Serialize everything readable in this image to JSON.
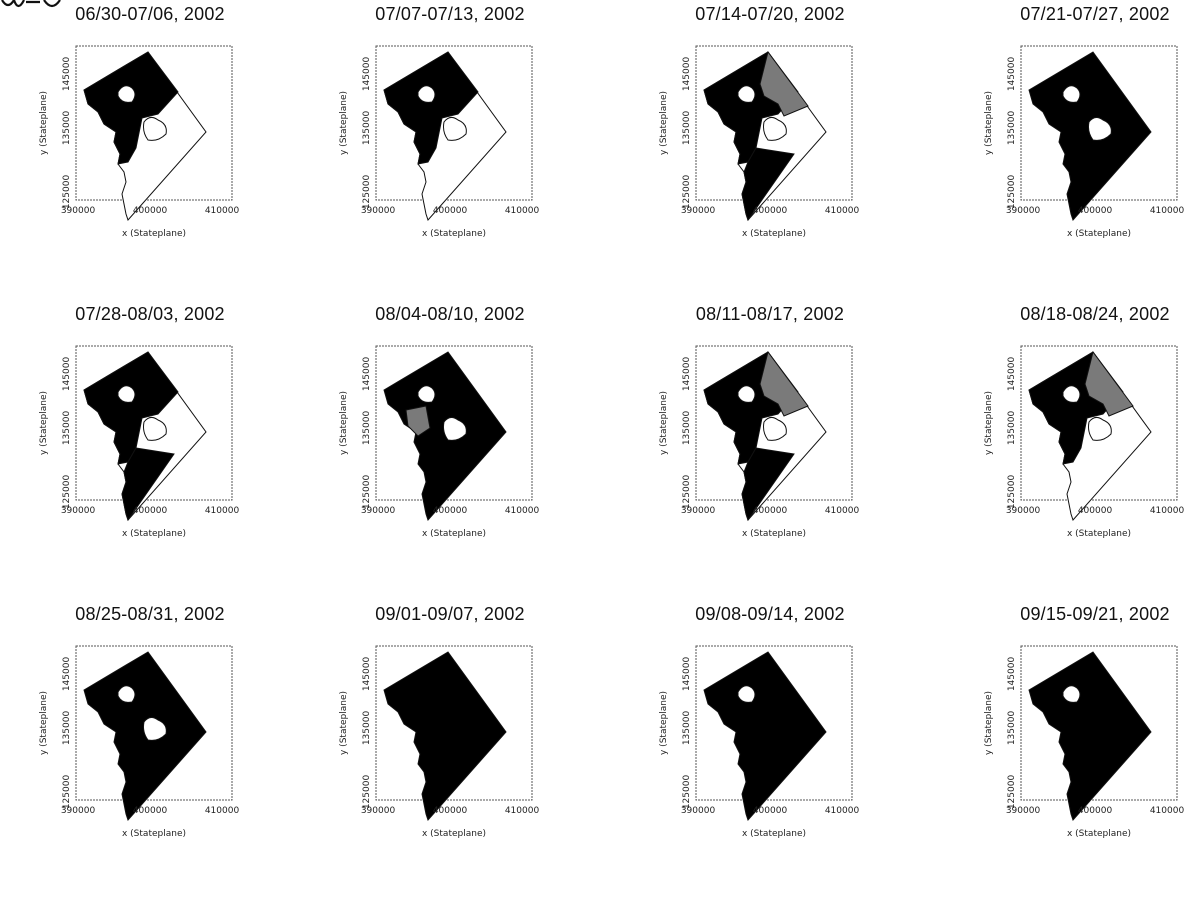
{
  "figure": {
    "header_fragment": "",
    "x_axis_label": "x (Stateplane)",
    "y_axis_label": "y (Stateplane)",
    "x_ticks": [
      "390000",
      "400000",
      "410000"
    ],
    "y_ticks": [
      "125000",
      "135000",
      "145000"
    ],
    "colors": {
      "infected": "#000000",
      "hatched": "#7a7a7a",
      "background": "#ffffff"
    }
  },
  "panels": [
    {
      "title": "06/30-07/06, 2002",
      "infected_regions": [
        "northwest",
        "north",
        "central-west"
      ]
    },
    {
      "title": "07/07-07/13, 2002",
      "infected_regions": [
        "northwest",
        "north",
        "central-west"
      ]
    },
    {
      "title": "07/14-07/20, 2002",
      "infected_regions": [
        "northwest",
        "north-hatched",
        "central-west",
        "south"
      ]
    },
    {
      "title": "07/21-07/27, 2002",
      "infected_regions": [
        "all-except-north-hole",
        "east-hole"
      ]
    },
    {
      "title": "07/28-08/03, 2002",
      "infected_regions": [
        "northwest",
        "north",
        "central-west",
        "south"
      ]
    },
    {
      "title": "08/04-08/10, 2002",
      "infected_regions": [
        "all-except-holes",
        "central-hatched"
      ]
    },
    {
      "title": "08/11-08/17, 2002",
      "infected_regions": [
        "northwest",
        "north-hatched",
        "north",
        "south"
      ]
    },
    {
      "title": "08/18-08/24, 2002",
      "infected_regions": [
        "northwest",
        "north",
        "north-hatched",
        "central-west"
      ]
    },
    {
      "title": "08/25-08/31, 2002",
      "infected_regions": [
        "all-except-north-hole",
        "east-hole"
      ]
    },
    {
      "title": "09/01-09/07, 2002",
      "infected_regions": [
        "all"
      ]
    },
    {
      "title": "09/08-09/14, 2002",
      "infected_regions": [
        "all-except-north-hole"
      ]
    },
    {
      "title": "09/15-09/21, 2002",
      "infected_regions": [
        "all-except-north-hole"
      ]
    }
  ]
}
